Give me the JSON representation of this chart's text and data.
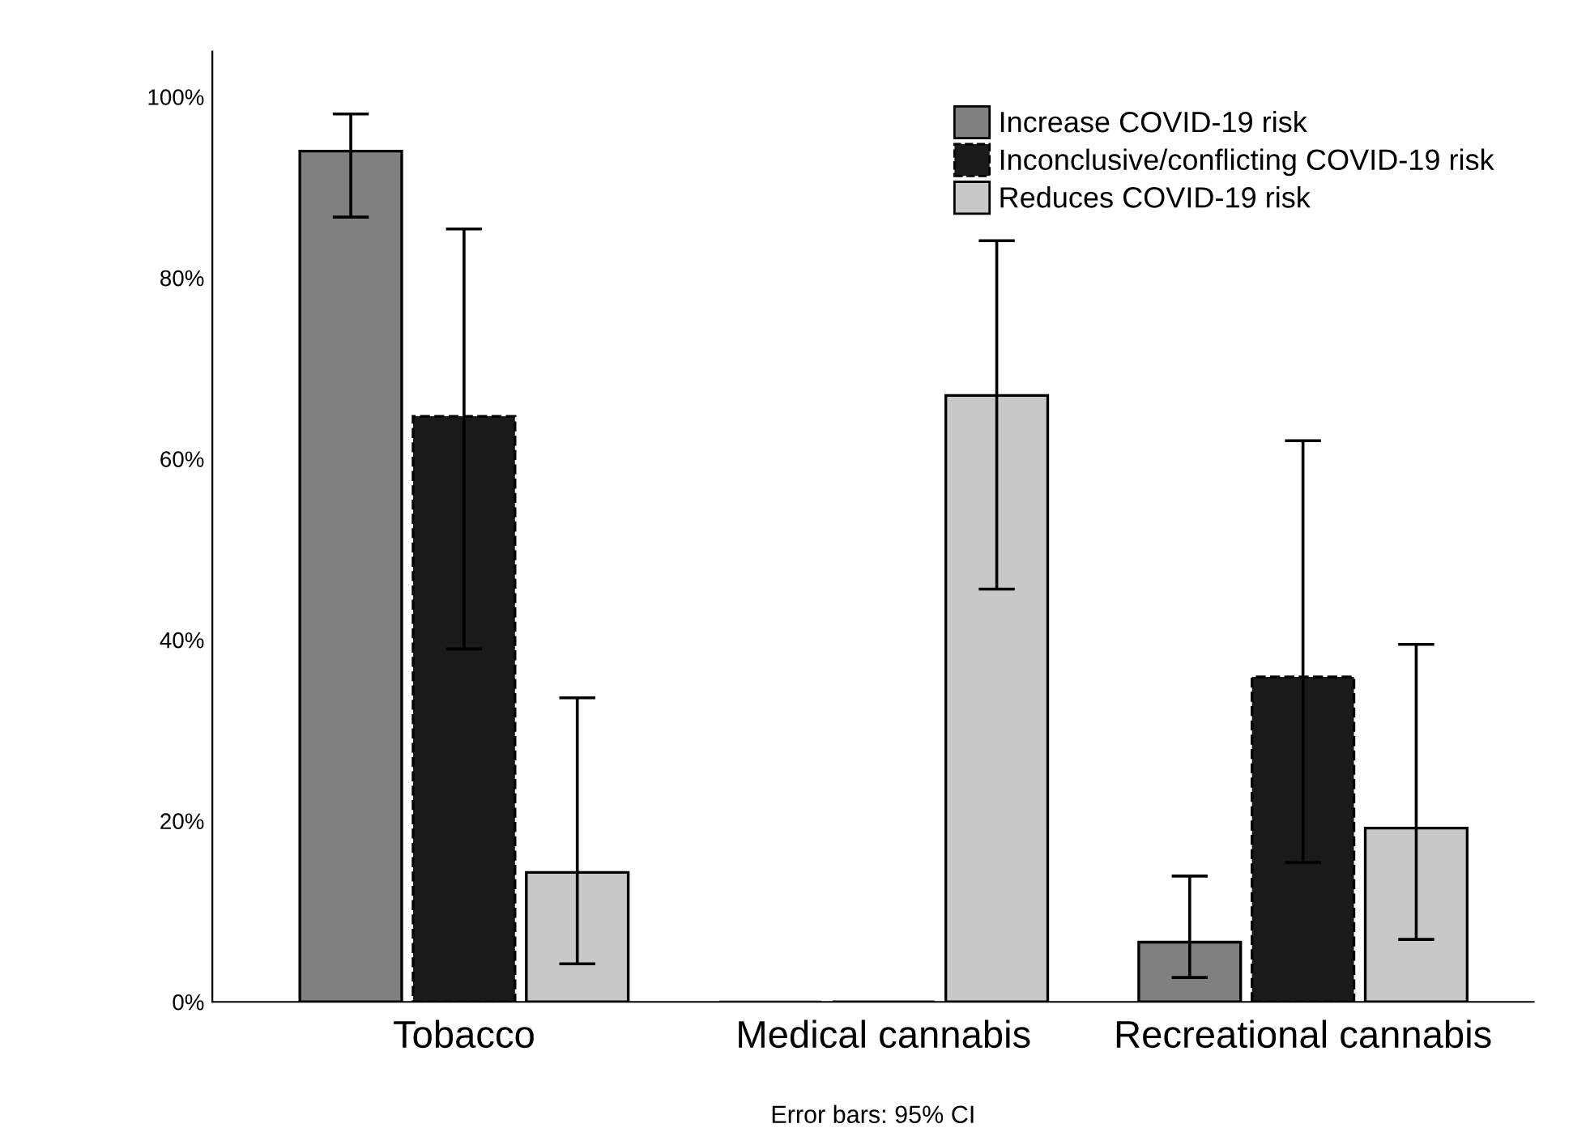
{
  "chart_data": {
    "type": "bar",
    "xlabel": "Error bars: 95% CI",
    "categories": [
      "Tobacco",
      "Medical cannabis",
      "Recreational cannabis"
    ],
    "series": [
      {
        "name": "Increase COVID-19 risk",
        "color": "#808080",
        "values": [
          94.0,
          0,
          6.6
        ],
        "errors": [
          [
            86.7,
            98.1
          ],
          null,
          [
            2.7,
            13.9
          ]
        ]
      },
      {
        "name": "Inconclusive/conflicting COVID-19 risk",
        "color": "#1a1a1a",
        "values": [
          64.7,
          0,
          35.9
        ],
        "errors": [
          [
            39.0,
            85.4
          ],
          null,
          [
            15.4,
            62.0
          ]
        ]
      },
      {
        "name": "Reduces COVID-19 risk",
        "color": "#c8c8c8",
        "values": [
          14.3,
          67.0,
          19.2
        ],
        "errors": [
          [
            4.2,
            33.6
          ],
          [
            45.6,
            84.1
          ],
          [
            6.9,
            39.5
          ]
        ]
      }
    ],
    "ylim": [
      0,
      105
    ],
    "yticks": [
      {
        "value": 0,
        "label": "0%"
      },
      {
        "value": 20,
        "label": "20%"
      },
      {
        "value": 40,
        "label": "40%"
      },
      {
        "value": 60,
        "label": "60%"
      },
      {
        "value": 80,
        "label": "80%"
      },
      {
        "value": 100,
        "label": "100%"
      }
    ],
    "legend": "top right",
    "grid": false
  }
}
